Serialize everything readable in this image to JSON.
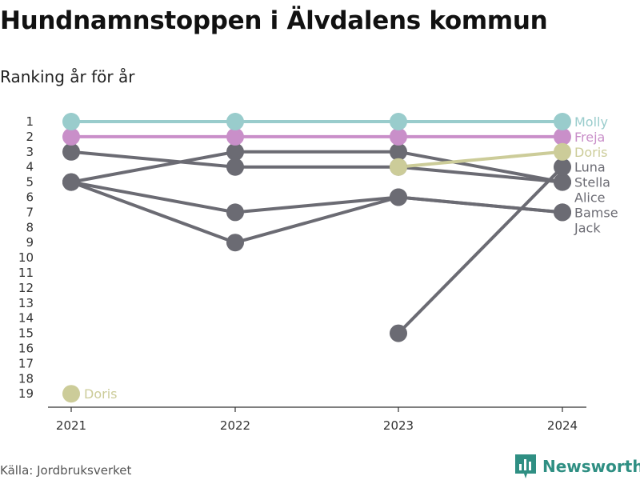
{
  "title": "Hundnamnstoppen i Älvdalens kommun",
  "subtitle": "Ranking år för år",
  "source": "Källa: Jordbruksverket",
  "brand": {
    "name": "Newsworthy",
    "color": "#2f8f83"
  },
  "chart_data": {
    "type": "line",
    "x": [
      "2021",
      "2022",
      "2023",
      "2024"
    ],
    "y_ticks": [
      "1",
      "2",
      "3",
      "4",
      "5",
      "6",
      "7",
      "8",
      "9",
      "10",
      "11",
      "12",
      "13",
      "14",
      "15",
      "16",
      "17",
      "18",
      "19"
    ],
    "ylim": [
      1,
      19
    ],
    "y_reversed": true,
    "grid": false,
    "series": [
      {
        "name": "",
        "values": [
          5,
          3,
          3,
          5
        ],
        "color": "#6b6b73"
      },
      {
        "name": "",
        "values": [
          3,
          4,
          4,
          5
        ],
        "color": "#6b6b73"
      },
      {
        "name": "",
        "values": [
          5,
          7,
          6,
          7
        ],
        "color": "#6b6b73"
      },
      {
        "name": "",
        "values": [
          5,
          9,
          6,
          7
        ],
        "color": "#6b6b73"
      },
      {
        "name": "",
        "values": [
          null,
          null,
          15,
          4
        ],
        "color": "#6b6b73"
      },
      {
        "name": "Freja",
        "values": [
          2,
          2,
          2,
          2
        ],
        "color": "#c98fc9"
      },
      {
        "name": "Molly",
        "values": [
          1,
          1,
          1,
          1
        ],
        "color": "#99cccc"
      },
      {
        "name": "Doris",
        "values": [
          19,
          null,
          4,
          3
        ],
        "color": "#cccc99"
      }
    ],
    "start_labels": [
      {
        "text": "Doris",
        "value": 19,
        "color": "#cccc99"
      }
    ],
    "end_labels": [
      {
        "text": "Molly",
        "value": 1,
        "color": "#99cccc"
      },
      {
        "text": "Freja",
        "value": 2,
        "color": "#c98fc9"
      },
      {
        "text": "Doris",
        "value": 3,
        "color": "#cccc99"
      },
      {
        "text": "Luna",
        "value": 4,
        "color": "#6b6b73"
      },
      {
        "text": "Stella",
        "value": 5,
        "color": "#6b6b73"
      },
      {
        "text": "Alice",
        "value": 6,
        "color": "#6b6b73"
      },
      {
        "text": "Bamse",
        "value": 7,
        "color": "#6b6b73"
      },
      {
        "text": "Jack",
        "value": 8,
        "color": "#6b6b73"
      }
    ]
  }
}
